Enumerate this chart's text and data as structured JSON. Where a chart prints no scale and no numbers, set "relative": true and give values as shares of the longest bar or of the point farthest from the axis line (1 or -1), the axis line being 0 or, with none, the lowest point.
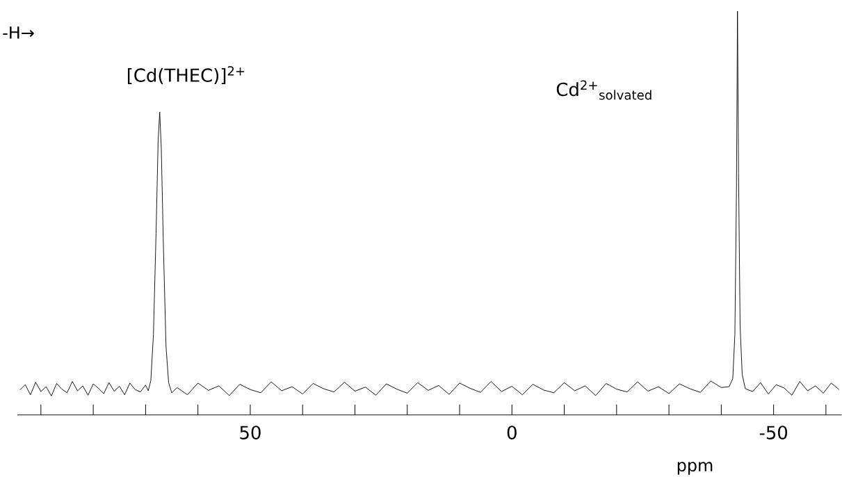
{
  "chart_data": {
    "type": "line",
    "relative": true,
    "xlabel": "ppm",
    "xlim": [
      94.5,
      -63
    ],
    "xticks": [
      {
        "value": 90,
        "label": null
      },
      {
        "value": 80,
        "label": null
      },
      {
        "value": 70,
        "label": null
      },
      {
        "value": 60,
        "label": null
      },
      50,
      {
        "value": 40,
        "label": null
      },
      {
        "value": 30,
        "label": null
      },
      {
        "value": 20,
        "label": null
      },
      {
        "value": 10,
        "label": null
      },
      0,
      {
        "value": -10,
        "label": null
      },
      {
        "value": -20,
        "label": null
      },
      {
        "value": -30,
        "label": null
      },
      {
        "value": -40,
        "label": null
      },
      -50,
      {
        "value": -60,
        "label": null
      }
    ],
    "annotations": [
      {
        "text": "[Cd(THEC)]$^{2+}$",
        "x": 67.3,
        "y": 0.75
      },
      "Cd$^{2+}$$_{solvated}$",
      "-H→"
    ],
    "series": [
      {
        "color": "#000000",
        "x": [
          94,
          93,
          92,
          91,
          90,
          89,
          88,
          87,
          86,
          85,
          84,
          83,
          82,
          81,
          80,
          79,
          78,
          77,
          76,
          75,
          74,
          73,
          72,
          71,
          70,
          69.5,
          69,
          68.5,
          68,
          67.6,
          67.3,
          67,
          66.6,
          66.1,
          65.6,
          65,
          64,
          62,
          60,
          58,
          56,
          54,
          52,
          50,
          48,
          46,
          44,
          42,
          40,
          38,
          36,
          34,
          32,
          30,
          28,
          26,
          24,
          22,
          20,
          18,
          16,
          14,
          12,
          10,
          8,
          6,
          4,
          2,
          0,
          -2,
          -4,
          -6,
          -8,
          -10,
          -12,
          -14,
          -16,
          -18,
          -20,
          -22,
          -24,
          -26,
          -28,
          -30,
          -32,
          -34,
          -36,
          -38,
          -40,
          -41.5,
          -42.2,
          -42.6,
          -42.9,
          -43.1,
          -43.3,
          -43.6,
          -44,
          -44.6,
          -46,
          -47.5,
          -49,
          -50.5,
          -52,
          -53.5,
          -55,
          -56.5,
          -58,
          -59.5,
          -61,
          -62.5
        ],
        "values": [
          0.062,
          0.075,
          0.05,
          0.081,
          0.058,
          0.07,
          0.047,
          0.078,
          0.064,
          0.055,
          0.083,
          0.06,
          0.072,
          0.049,
          0.077,
          0.066,
          0.053,
          0.08,
          0.059,
          0.071,
          0.05,
          0.079,
          0.063,
          0.057,
          0.074,
          0.06,
          0.085,
          0.2,
          0.45,
          0.68,
          0.75,
          0.66,
          0.42,
          0.17,
          0.08,
          0.055,
          0.068,
          0.05,
          0.079,
          0.061,
          0.072,
          0.048,
          0.076,
          0.063,
          0.055,
          0.082,
          0.06,
          0.07,
          0.052,
          0.078,
          0.065,
          0.057,
          0.081,
          0.059,
          0.069,
          0.049,
          0.077,
          0.064,
          0.054,
          0.08,
          0.061,
          0.073,
          0.051,
          0.079,
          0.066,
          0.056,
          0.083,
          0.058,
          0.071,
          0.05,
          0.076,
          0.062,
          0.055,
          0.08,
          0.06,
          0.072,
          0.048,
          0.078,
          0.064,
          0.057,
          0.082,
          0.059,
          0.07,
          0.053,
          0.077,
          0.065,
          0.056,
          0.084,
          0.068,
          0.07,
          0.09,
          0.2,
          0.55,
          1,
          0.6,
          0.22,
          0.1,
          0.065,
          0.058,
          0.08,
          0.052,
          0.075,
          0.067,
          0.049,
          0.083,
          0.06,
          0.072,
          0.054,
          0.079,
          0.063
        ]
      }
    ]
  }
}
